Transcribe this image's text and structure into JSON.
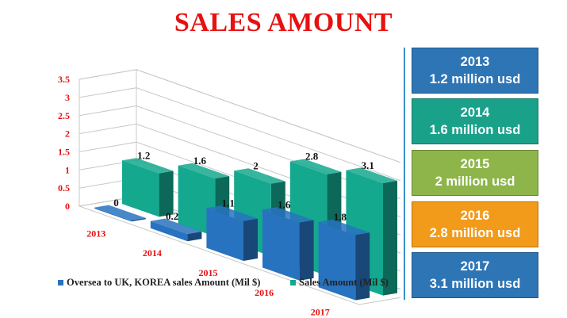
{
  "title": "SALES AMOUNT",
  "chart_data": {
    "type": "bar",
    "categories": [
      "2013",
      "2014",
      "2015",
      "2016",
      "2017"
    ],
    "series": [
      {
        "name": "Oversea to UK, KOREA sales Amount (Mil $)",
        "color": "#2873c0",
        "values": [
          0,
          0.2,
          1.1,
          1.6,
          1.8
        ]
      },
      {
        "name": "Sales Amount (Mil $)",
        "color": "#14a88e",
        "values": [
          1.2,
          1.6,
          2,
          2.8,
          3.1
        ]
      }
    ],
    "ylim": [
      0,
      3.5
    ],
    "y_ticks": [
      "0",
      "0.5",
      "1",
      "1.5",
      "2",
      "2.5",
      "3",
      "3.5"
    ],
    "grid": true,
    "legend_position": "bottom"
  },
  "cards": [
    {
      "year": "2013",
      "text": "1.2 million usd",
      "color": "#2e75b6"
    },
    {
      "year": "2014",
      "text": "1.6 million usd",
      "color": "#1aa18a"
    },
    {
      "year": "2015",
      "text": "2 million usd",
      "color": "#8db54a"
    },
    {
      "year": "2016",
      "text": "2.8 million usd",
      "color": "#f29a1a"
    },
    {
      "year": "2017",
      "text": "3.1 million usd",
      "color": "#2e75b6"
    }
  ]
}
